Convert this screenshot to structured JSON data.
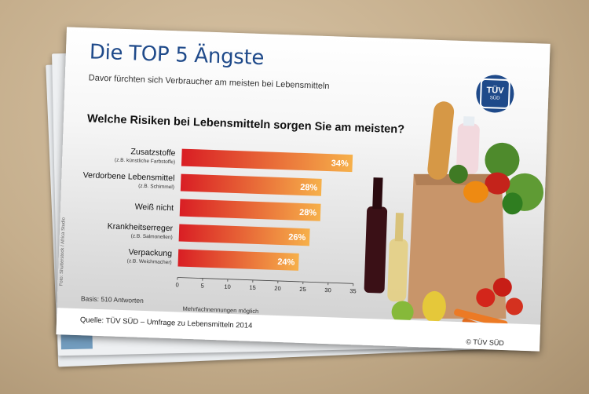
{
  "title": "Die TOP 5 Ängste",
  "subtitle": "Davor fürchten sich Verbraucher am meisten bei Lebensmitteln",
  "logo": {
    "text": "TÜV",
    "subtext": "SÜD"
  },
  "question": "Welche Risiken bei Lebensmitteln sorgen Sie am meisten?",
  "basis": "Basis: 510 Antworten",
  "note": "Mehrfachnennungen möglich",
  "source": "Quelle: TÜV SÜD – Umfrage zu Lebensmitteln 2014",
  "copyright": "© TÜV SÜD",
  "photo_credit": "Foto: Shutterstock / Africa Studio",
  "colors": {
    "title": "#1f4a8a",
    "bar_start": "#d91e24",
    "bar_end": "#f6b04a"
  },
  "chart_data": {
    "type": "bar",
    "orientation": "horizontal",
    "title": "Welche Risiken bei Lebensmitteln sorgen Sie am meisten?",
    "categories": [
      "Zusatzstoffe",
      "Verdorbene Lebensmittel",
      "Weiß nicht",
      "Krankheitserreger",
      "Verpackung"
    ],
    "sublabels": [
      "(z.B. künstliche Farbstoffe)",
      "(z.B. Schimmel)",
      "",
      "(z.B. Salmonellen)",
      "(z.B. Weichmacher)"
    ],
    "values": [
      34,
      28,
      28,
      26,
      24
    ],
    "value_labels": [
      "34%",
      "28%",
      "28%",
      "26%",
      "24%"
    ],
    "xlim": [
      0,
      35
    ],
    "xticks": [
      0,
      5,
      10,
      15,
      20,
      25,
      30,
      35
    ],
    "xlabel": "",
    "ylabel": "",
    "grid": false,
    "legend": "none"
  }
}
